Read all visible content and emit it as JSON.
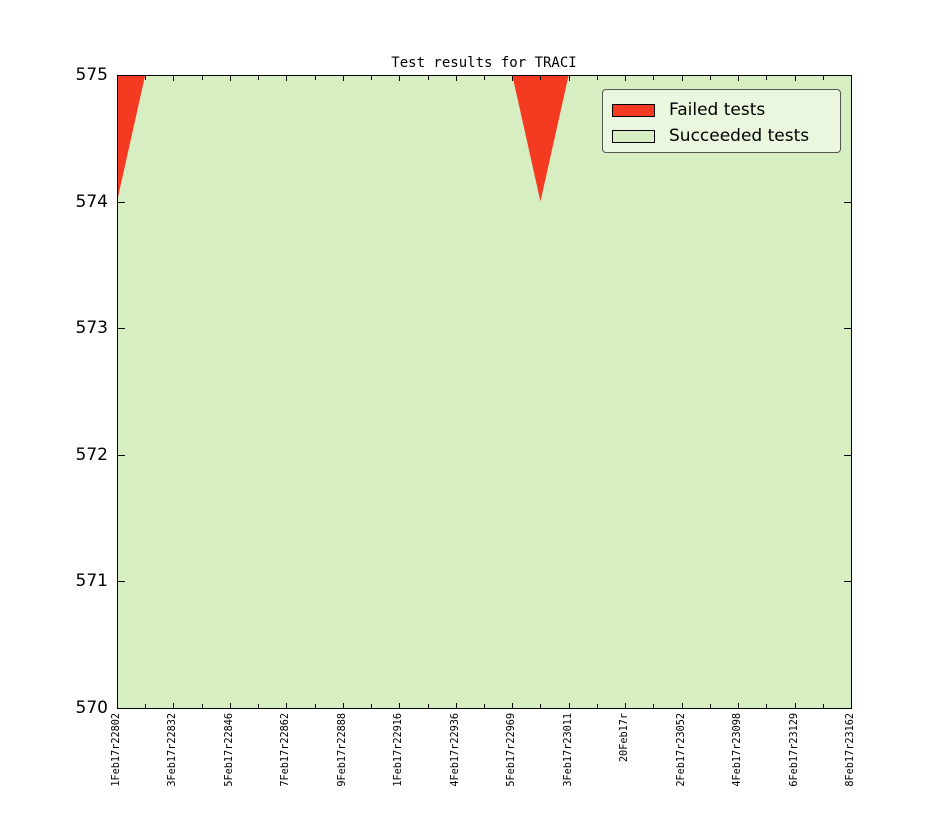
{
  "figure": {
    "background": "#ffffff"
  },
  "chart_data": {
    "type": "area",
    "stacked": true,
    "title": "Test results for TRACI",
    "xlabel": "",
    "ylabel": "",
    "ylim": [
      570,
      575
    ],
    "y_tick_labels": [
      "570",
      "571",
      "572",
      "573",
      "574",
      "575"
    ],
    "n_points": 27,
    "x_labels_every": 2,
    "x_tick_labels": [
      "1Feb17r22802",
      "3Feb17r22832",
      "5Feb17r22846",
      "7Feb17r22862",
      "9Feb17r22888",
      "1Feb17r22916",
      "4Feb17r22936",
      "5Feb17r22969",
      "3Feb17r23011",
      "20Feb17r",
      "2Feb17r23052",
      "4Feb17r23098",
      "6Feb17r23129",
      "8Feb17r23162"
    ],
    "series": [
      {
        "name": "Failed tests",
        "color": "#f43a20",
        "values": [
          1,
          0,
          0,
          0,
          0,
          0,
          0,
          0,
          0,
          0,
          0,
          0,
          0,
          0,
          0,
          1,
          0,
          0,
          0,
          0,
          0,
          0,
          0,
          0,
          0,
          0,
          0
        ]
      },
      {
        "name": "Succeeded tests",
        "color": "#d6eec1",
        "values": [
          574,
          575,
          575,
          575,
          575,
          575,
          575,
          575,
          575,
          575,
          575,
          575,
          575,
          575,
          575,
          574,
          575,
          575,
          575,
          575,
          575,
          575,
          575,
          575,
          575,
          575,
          575
        ]
      }
    ],
    "legend": {
      "position": "upper right",
      "entries": [
        "Failed tests",
        "Succeeded tests"
      ],
      "background": "#eaf7de",
      "border_color": "#565656"
    },
    "grid": false,
    "axis_color": "#000000",
    "tick_direction": "in"
  }
}
